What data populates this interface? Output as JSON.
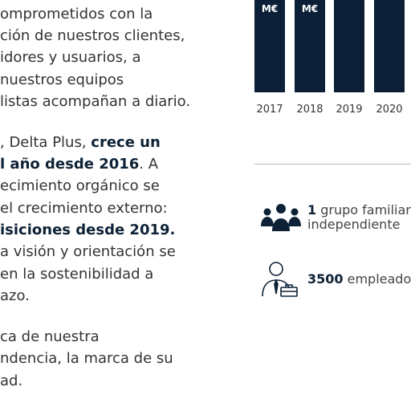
{
  "left_text": {
    "paragraphs": [
      {
        "lines": [
          [
            {
              "text": "omprometidos con la"
            }
          ],
          [
            {
              "text": "ción de nuestros clientes,"
            }
          ],
          [
            {
              "text": "idores y usuarios, a"
            }
          ],
          [
            {
              "text": " nuestros equipos"
            }
          ],
          [
            {
              "text": "listas acompañan a diario."
            }
          ]
        ]
      },
      {
        "lines": [
          [
            {
              "text": ", Delta Plus, "
            },
            {
              "text": "crece un",
              "bold": true
            }
          ],
          [
            {
              "text": "l año desde 2016",
              "bold": true
            },
            {
              "text": ". A"
            }
          ],
          [
            {
              "text": "ecimiento orgánico se"
            }
          ],
          [
            {
              "text": "el crecimiento externo:"
            }
          ],
          [
            {
              "text": "isiciones desde 2019.",
              "bold": true
            }
          ],
          [
            {
              "text": "a visión y orientación se"
            }
          ],
          [
            {
              "text": " en la sostenibilidad a"
            }
          ],
          [
            {
              "text": "azo."
            }
          ]
        ]
      },
      {
        "lines": [
          [
            {
              "text": "ca de nuestra"
            }
          ],
          [
            {
              "text": "ndencia, la marca de su"
            }
          ],
          [
            {
              "text": "ad."
            }
          ]
        ]
      }
    ]
  },
  "bars": {
    "unit_labels": [
      "M€",
      "M€"
    ],
    "years": [
      "2017",
      "2018",
      "2019",
      "2020"
    ]
  },
  "facts": [
    {
      "number": "1",
      "text": " grupo familiar e",
      "line2": "independiente"
    },
    {
      "number": "3500",
      "text": " empleados"
    }
  ]
}
